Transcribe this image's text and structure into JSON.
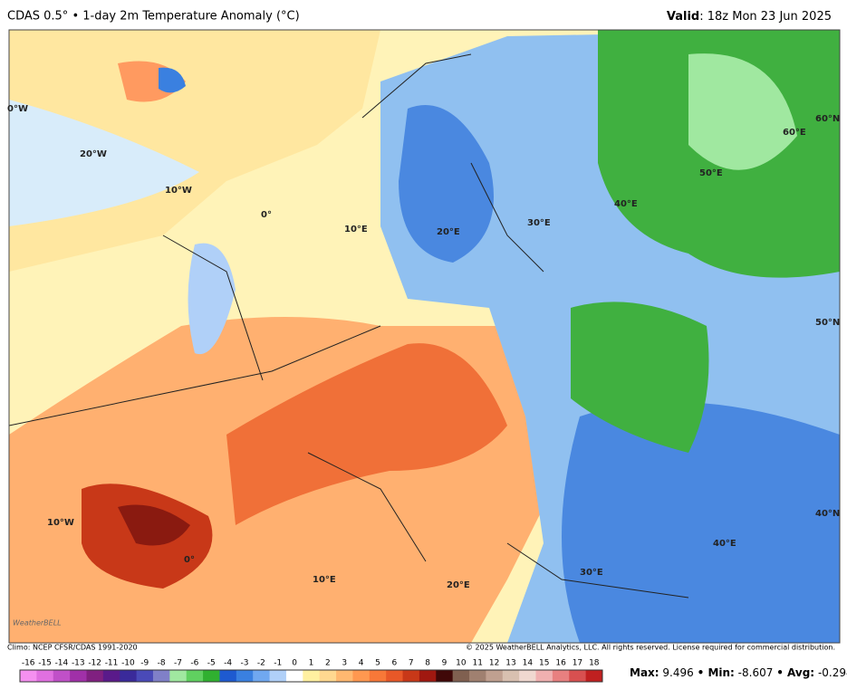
{
  "header": {
    "title": "CDAS 0.5° • 1-day 2m Temperature Anomaly (°C)",
    "valid_label": "Valid",
    "valid_value": ": 18z Mon 23 Jun 2025"
  },
  "map": {
    "grid_labels": [
      "0°W",
      "20°W",
      "10°W",
      "0°",
      "10°E",
      "20°E",
      "30°E",
      "40°E",
      "50°E",
      "60°E",
      "60°N",
      "50°N",
      "40°N",
      "10°W",
      "0°",
      "10°E",
      "20°E",
      "30°E",
      "40°E"
    ],
    "logo": "WeatherBELL"
  },
  "footer": {
    "climo": "Climo: NCEP CFSR/CDAS 1991-2020",
    "copyright": "© 2025 WeatherBELL Analytics, LLC. All rights reserved. License required for commercial distribution."
  },
  "colorbar": {
    "labels": [
      -16,
      -15,
      -14,
      -13,
      -12,
      -11,
      -10,
      -9,
      -8,
      -7,
      -6,
      -5,
      -4,
      -3,
      -2,
      -1,
      0,
      1,
      2,
      3,
      4,
      5,
      6,
      7,
      8,
      9,
      10,
      11,
      12,
      13,
      14,
      15,
      16,
      17,
      18
    ],
    "colors": [
      "#f590f0",
      "#e070e0",
      "#c050c8",
      "#a030a8",
      "#802080",
      "#5a1a8a",
      "#3a2a9a",
      "#4a4ab8",
      "#8080c8",
      "#a0e8a0",
      "#60d060",
      "#30b030",
      "#1e5ad0",
      "#3a80e0",
      "#70a8f0",
      "#b0d0f8",
      "#ffffff",
      "#fff0a0",
      "#ffd890",
      "#ffb870",
      "#ff9850",
      "#f87838",
      "#e85828",
      "#c83818",
      "#a01810",
      "#400808",
      "#806050",
      "#a08070",
      "#c0a090",
      "#d8c0b0",
      "#f0d8d0",
      "#f0b0b0",
      "#e88080",
      "#d85050",
      "#c02020"
    ]
  },
  "stats": {
    "max_label": "Max:",
    "max": 9.496,
    "min_label": "• Min:",
    "min": -8.607,
    "avg_label": "• Avg:",
    "avg": -0.294
  }
}
